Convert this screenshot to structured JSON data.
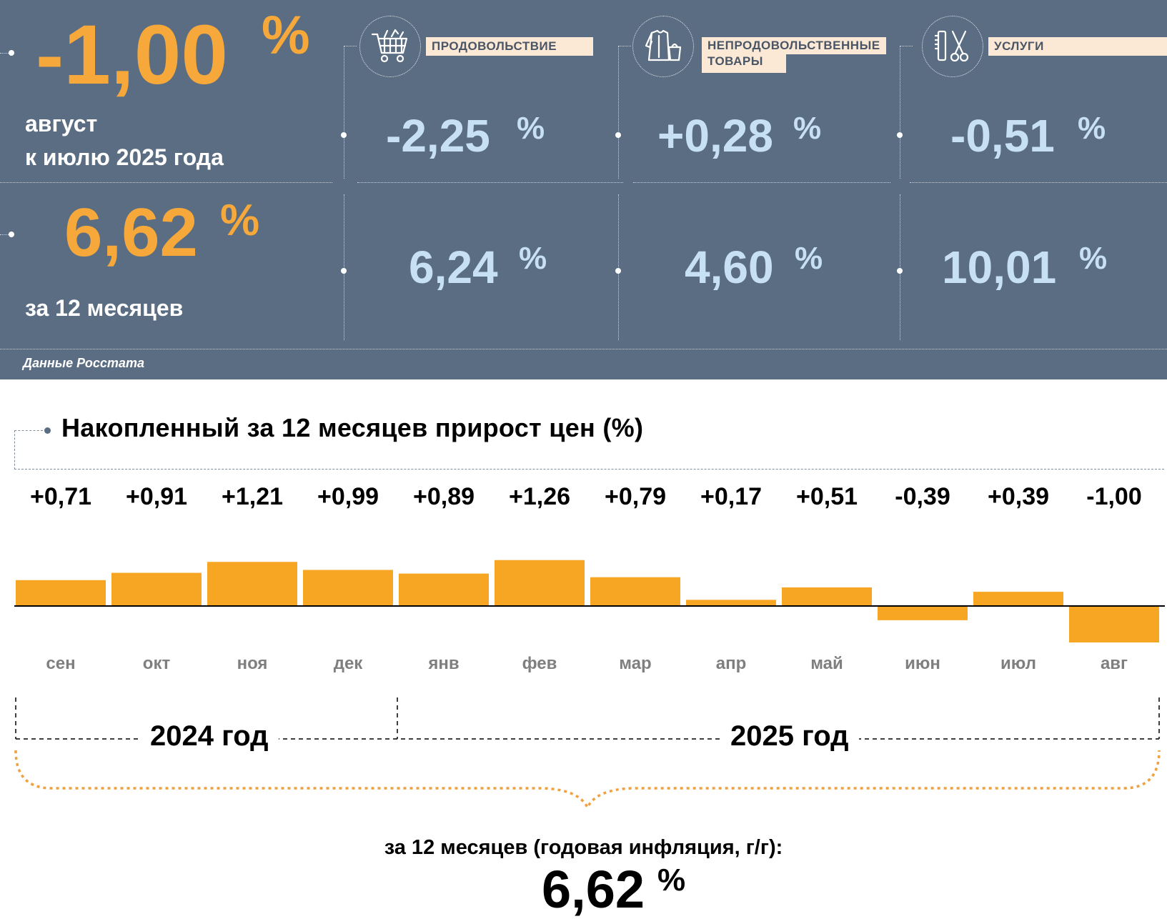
{
  "summary": {
    "monthly": {
      "value": "-1,00",
      "unit": "%",
      "caption_line1": "август",
      "caption_line2": "к июлю 2025 года"
    },
    "annual": {
      "value": "6,62",
      "unit": "%",
      "caption": "за 12 месяцев"
    },
    "source": "Данные Росстата"
  },
  "categories": [
    {
      "label": "ПРОДОВОЛЬСТВИЕ",
      "icon": "shopping-cart-icon",
      "monthly": "-2,25",
      "annual": "6,24",
      "unit": "%"
    },
    {
      "label_line1": "НЕПРОДОВОЛЬСТВЕННЫЕ",
      "label_line2": "ТОВАРЫ",
      "icon": "clothing-bag-icon",
      "monthly": "+0,28",
      "annual": "4,60",
      "unit": "%"
    },
    {
      "label": "УСЛУГИ",
      "icon": "comb-scissors-icon",
      "monthly": "-0,51",
      "annual": "10,01",
      "unit": "%"
    }
  ],
  "chart_heading": "Накопленный за 12 месяцев прирост цен (%)",
  "chart_data": {
    "type": "bar",
    "title": "Накопленный за 12 месяцев прирост цен (%)",
    "categories": [
      "сен",
      "окт",
      "ноя",
      "дек",
      "янв",
      "фев",
      "мар",
      "апр",
      "май",
      "июн",
      "июл",
      "авг"
    ],
    "values": [
      0.71,
      0.91,
      1.21,
      0.99,
      0.89,
      1.26,
      0.79,
      0.17,
      0.51,
      -0.39,
      0.39,
      -1.0
    ],
    "value_labels": [
      "+0,71",
      "+0,91",
      "+1,21",
      "+0,99",
      "+0,89",
      "+1,26",
      "+0,79",
      "+0,17",
      "+0,51",
      "-0,39",
      "+0,39",
      "-1,00"
    ],
    "year_groups": [
      {
        "label": "2024 год",
        "months": [
          "сен",
          "окт",
          "ноя",
          "дек"
        ]
      },
      {
        "label": "2025 год",
        "months": [
          "янв",
          "фев",
          "мар",
          "апр",
          "май",
          "июн",
          "июл",
          "авг"
        ]
      }
    ],
    "bar_color": "#f6a623"
  },
  "annual_total": {
    "caption": "за 12 месяцев (годовая инфляция, г/г):",
    "value": "6,62",
    "unit": "%"
  }
}
